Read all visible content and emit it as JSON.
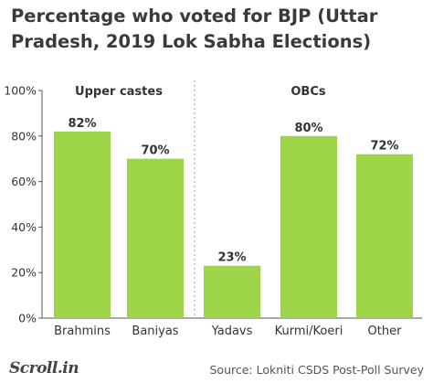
{
  "title": "Percentage who voted for BJP (Uttar Pradesh, 2019 Lok Sabha Elections)",
  "source": "Source: Lokniti CSDS Post-Poll Survey",
  "logo": "Scroll.in",
  "colors": {
    "bar": "#9dd448",
    "text": "#333333",
    "axis": "#555555",
    "divider": "#9a9a9a"
  },
  "chart_data": {
    "type": "bar",
    "title": "Percentage who voted for BJP (Uttar Pradesh, 2019 Lok Sabha Elections)",
    "categories": [
      "Brahmins",
      "Baniyas",
      "Yadavs",
      "Kurmi/Koeri",
      "Other"
    ],
    "values": [
      82,
      70,
      23,
      80,
      72
    ],
    "data_labels": [
      "82%",
      "70%",
      "23%",
      "80%",
      "72%"
    ],
    "groups": [
      {
        "label": "Upper castes",
        "categories": [
          "Brahmins",
          "Baniyas"
        ]
      },
      {
        "label": "OBCs",
        "categories": [
          "Yadavs",
          "Kurmi/Koeri",
          "Other"
        ]
      }
    ],
    "yticks": [
      0,
      20,
      40,
      60,
      80,
      100
    ],
    "ytick_labels": [
      "0%",
      "20%",
      "40%",
      "60%",
      "80%",
      "100%"
    ],
    "ylim": [
      0,
      100
    ],
    "xlabel": "",
    "ylabel": "",
    "grid": false
  }
}
